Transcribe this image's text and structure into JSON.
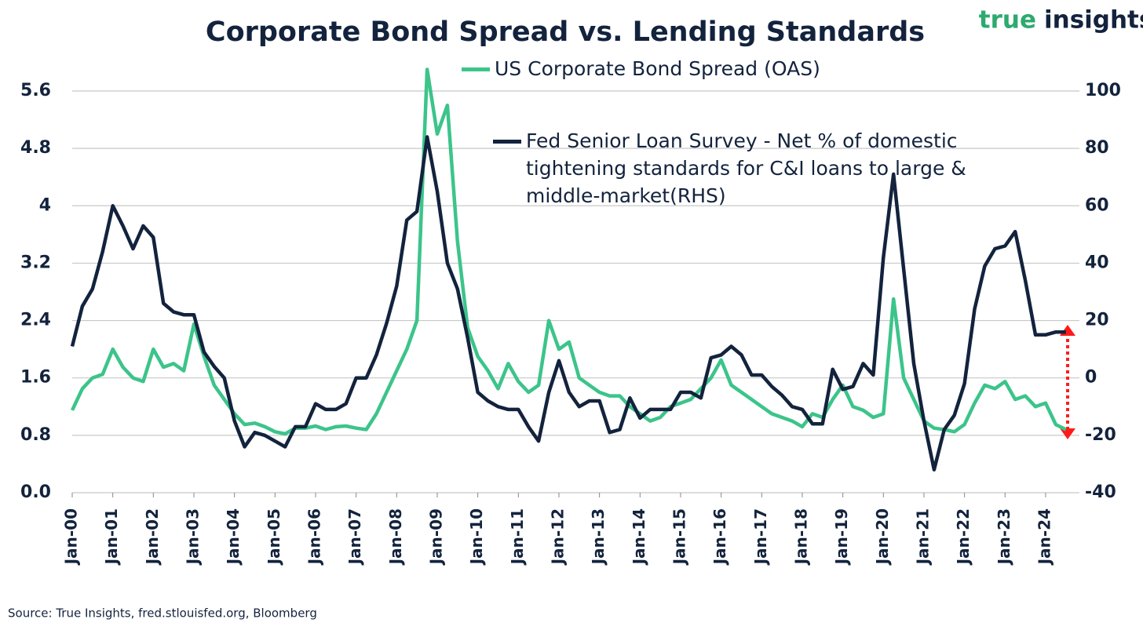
{
  "chart_data": {
    "type": "line",
    "title": "Corporate Bond Spread vs. Lending Standards",
    "logo": [
      "true",
      "insights"
    ],
    "source": "Source: True Insights, fred.stlouisfed.org, Bloomberg",
    "x": [
      "2000-01",
      "2000-04",
      "2000-07",
      "2000-10",
      "2001-01",
      "2001-04",
      "2001-07",
      "2001-10",
      "2002-01",
      "2002-04",
      "2002-07",
      "2002-10",
      "2003-01",
      "2003-04",
      "2003-07",
      "2003-10",
      "2004-01",
      "2004-04",
      "2004-07",
      "2004-10",
      "2005-01",
      "2005-04",
      "2005-07",
      "2005-10",
      "2006-01",
      "2006-04",
      "2006-07",
      "2006-10",
      "2007-01",
      "2007-04",
      "2007-07",
      "2007-10",
      "2008-01",
      "2008-04",
      "2008-07",
      "2008-10",
      "2009-01",
      "2009-04",
      "2009-07",
      "2009-10",
      "2010-01",
      "2010-04",
      "2010-07",
      "2010-10",
      "2011-01",
      "2011-04",
      "2011-07",
      "2011-10",
      "2012-01",
      "2012-04",
      "2012-07",
      "2012-10",
      "2013-01",
      "2013-04",
      "2013-07",
      "2013-10",
      "2014-01",
      "2014-04",
      "2014-07",
      "2014-10",
      "2015-01",
      "2015-04",
      "2015-07",
      "2015-10",
      "2016-01",
      "2016-04",
      "2016-07",
      "2016-10",
      "2017-01",
      "2017-04",
      "2017-07",
      "2017-10",
      "2018-01",
      "2018-04",
      "2018-07",
      "2018-10",
      "2019-01",
      "2019-04",
      "2019-07",
      "2019-10",
      "2020-01",
      "2020-04",
      "2020-07",
      "2020-10",
      "2021-01",
      "2021-04",
      "2021-07",
      "2021-10",
      "2022-01",
      "2022-04",
      "2022-07",
      "2022-10",
      "2023-01",
      "2023-04",
      "2023-07",
      "2023-10",
      "2024-01",
      "2024-04",
      "2024-07"
    ],
    "series": [
      {
        "name": "US Corporate Bond Spread (OAS)",
        "color": "#3cc48a",
        "axis": "y",
        "values": [
          1.15,
          1.45,
          1.6,
          1.65,
          2.0,
          1.75,
          1.6,
          1.55,
          2.0,
          1.75,
          1.8,
          1.7,
          2.35,
          1.9,
          1.5,
          1.3,
          1.1,
          0.95,
          0.97,
          0.92,
          0.85,
          0.82,
          0.9,
          0.9,
          0.93,
          0.88,
          0.92,
          0.93,
          0.9,
          0.88,
          1.1,
          1.4,
          1.7,
          2.0,
          2.4,
          5.9,
          5.0,
          5.4,
          3.5,
          2.3,
          1.9,
          1.7,
          1.45,
          1.8,
          1.55,
          1.4,
          1.5,
          2.4,
          2.0,
          2.1,
          1.6,
          1.5,
          1.4,
          1.35,
          1.35,
          1.2,
          1.1,
          1.0,
          1.05,
          1.2,
          1.25,
          1.3,
          1.45,
          1.6,
          1.85,
          1.5,
          1.4,
          1.3,
          1.2,
          1.1,
          1.05,
          1.0,
          0.92,
          1.1,
          1.05,
          1.3,
          1.5,
          1.2,
          1.15,
          1.05,
          1.1,
          2.7,
          1.6,
          1.3,
          1.0,
          0.9,
          0.88,
          0.85,
          0.95,
          1.25,
          1.5,
          1.45,
          1.55,
          1.3,
          1.35,
          1.2,
          1.25,
          0.95,
          0.88
        ]
      },
      {
        "name": "Fed Senior Loan Survey - Net % of domestic tightening standards for C&I loans to large & middle-market(RHS)",
        "color": "#13233d",
        "axis": "y2",
        "values": [
          11,
          25,
          31,
          44,
          60,
          53,
          45,
          53,
          49,
          26,
          23,
          22,
          22,
          9,
          4,
          0,
          -15,
          -24,
          -19,
          -20,
          -22,
          -24,
          -17,
          -17,
          -9,
          -11,
          -11,
          -9,
          0,
          0,
          8,
          19,
          32,
          55,
          58,
          84,
          65,
          40,
          31,
          14,
          -5,
          -8,
          -10,
          -11,
          -11,
          -17,
          -22,
          -5,
          6,
          -5,
          -10,
          -8,
          -8,
          -19,
          -18,
          -7,
          -14,
          -11,
          -11,
          -11,
          -5,
          -5,
          -7,
          7,
          8,
          11,
          8,
          1,
          1,
          -3,
          -6,
          -10,
          -11,
          -16,
          -16,
          3,
          -4,
          -3,
          5,
          1,
          42,
          71,
          38,
          5,
          -15,
          -32,
          -18,
          -13,
          -2,
          24,
          39,
          45,
          46,
          51,
          34,
          15,
          15,
          16,
          16
        ]
      }
    ],
    "xlim": [
      "2000-01",
      "2024-11"
    ],
    "xticks": [
      {
        "value": "2000-01",
        "label": "Jan-00"
      },
      {
        "value": "2001-01",
        "label": "Jan-01"
      },
      {
        "value": "2002-01",
        "label": "Jan-02"
      },
      {
        "value": "2003-01",
        "label": "Jan-03"
      },
      {
        "value": "2004-01",
        "label": "Jan-04"
      },
      {
        "value": "2005-01",
        "label": "Jan-05"
      },
      {
        "value": "2006-01",
        "label": "Jan-06"
      },
      {
        "value": "2007-01",
        "label": "Jan-07"
      },
      {
        "value": "2008-01",
        "label": "Jan-08"
      },
      {
        "value": "2009-01",
        "label": "Jan-09"
      },
      {
        "value": "2010-01",
        "label": "Jan-10"
      },
      {
        "value": "2011-01",
        "label": "Jan-11"
      },
      {
        "value": "2012-01",
        "label": "Jan-12"
      },
      {
        "value": "2013-01",
        "label": "Jan-13"
      },
      {
        "value": "2014-01",
        "label": "Jan-14"
      },
      {
        "value": "2015-01",
        "label": "Jan-15"
      },
      {
        "value": "2016-01",
        "label": "Jan-16"
      },
      {
        "value": "2017-01",
        "label": "Jan-17"
      },
      {
        "value": "2018-01",
        "label": "Jan-18"
      },
      {
        "value": "2019-01",
        "label": "Jan-19"
      },
      {
        "value": "2020-01",
        "label": "Jan-20"
      },
      {
        "value": "2021-01",
        "label": "Jan-21"
      },
      {
        "value": "2022-01",
        "label": "Jan-22"
      },
      {
        "value": "2023-01",
        "label": "Jan-23"
      },
      {
        "value": "2024-01",
        "label": "Jan-24"
      }
    ],
    "ylim": [
      0,
      6.0
    ],
    "yticks": [
      {
        "value": 0,
        "label": "0.0"
      },
      0.8,
      1.6,
      2.4,
      3.2,
      4.0,
      4.8,
      5.6
    ],
    "y2lim": [
      -40,
      110
    ],
    "y2ticks": [
      -40,
      -20,
      0,
      20,
      40,
      60,
      80,
      100
    ],
    "grid": true
  }
}
